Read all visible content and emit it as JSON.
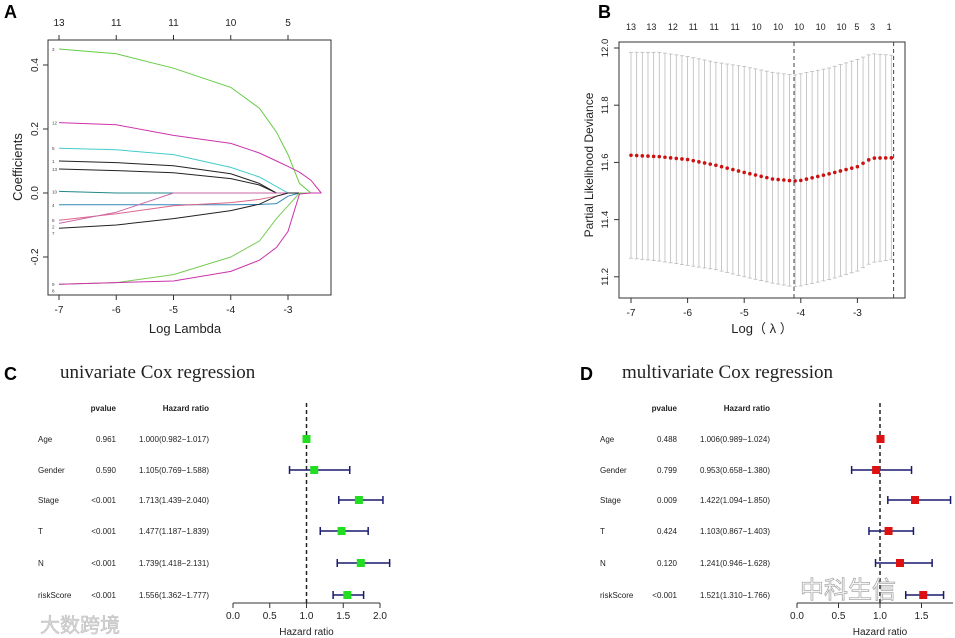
{
  "panel_labels": [
    "A",
    "B",
    "C",
    "D"
  ],
  "watermarks": [
    "大数跨境",
    "中科生信"
  ],
  "colors": {
    "green": "#22dd22",
    "red": "#dd1111",
    "navy": "#1a1a6e",
    "dev_points": "#cc1111",
    "grey": "#bbbbbb"
  },
  "chart_data": [
    {
      "type": "line",
      "id": "A",
      "xlabel": "Log Lambda",
      "ylabel": "Coefficients",
      "xlim": [
        -7.2,
        -2.35
      ],
      "ylim": [
        -0.32,
        0.478
      ],
      "xticks": [
        "-7",
        "-6",
        "-5",
        "-4",
        "-3"
      ],
      "xtick_values": [
        -7,
        -6,
        -5,
        -4,
        -3
      ],
      "yticks": [
        "-0.2",
        "0.0",
        "0.2",
        "0.4"
      ],
      "ytick_values": [
        -0.2,
        0.0,
        0.2,
        0.4
      ],
      "top_ticks": [
        "13",
        "11",
        "11",
        "10",
        "5"
      ],
      "top_tick_values": [
        -7,
        -6,
        -5,
        -4,
        -3
      ],
      "x": [
        -7,
        -6,
        -5,
        -4,
        -3.5,
        -3.2,
        -3,
        -2.8,
        -2.6,
        -2.42
      ],
      "series": [
        {
          "name": "3",
          "color": "#66cc44",
          "values": [
            0.45,
            0.435,
            0.39,
            0.33,
            0.265,
            0.19,
            0.12,
            0.03,
            0.0,
            0.0
          ]
        },
        {
          "name": "12",
          "color": "#cc33aa",
          "values": [
            0.22,
            0.213,
            0.18,
            0.155,
            0.125,
            0.1,
            0.083,
            0.065,
            0.04,
            0.0
          ]
        },
        {
          "name": "5",
          "color": "#44cccc",
          "values": [
            0.14,
            0.135,
            0.12,
            0.08,
            0.05,
            0.02,
            0.0,
            0.0,
            0.0,
            0.0
          ]
        },
        {
          "name": "1",
          "color": "#222222",
          "values": [
            0.1,
            0.095,
            0.085,
            0.06,
            0.03,
            0.0,
            0.0,
            0.0,
            0.0,
            0.0
          ]
        },
        {
          "name": "13",
          "color": "#222222",
          "values": [
            0.075,
            0.07,
            0.063,
            0.045,
            0.025,
            0.0,
            0.0,
            0.0,
            0.0,
            0.0
          ]
        },
        {
          "name": "10",
          "color": "#228888",
          "values": [
            0.005,
            0.0,
            0.0,
            0.0,
            0.0,
            0.0,
            0.0,
            0.0,
            0.0,
            0.0
          ]
        },
        {
          "name": "4",
          "color": "#3388bb",
          "values": [
            -0.037,
            -0.037,
            -0.037,
            -0.037,
            -0.036,
            -0.033,
            -0.01,
            0.0,
            0.0,
            0.0
          ]
        },
        {
          "name": "6",
          "color": "#dd6688",
          "values": [
            -0.085,
            -0.065,
            -0.04,
            -0.03,
            -0.02,
            -0.01,
            0.0,
            0.0,
            0.0,
            0.0
          ]
        },
        {
          "name": "2",
          "color": "#cc66aa",
          "values": [
            -0.095,
            -0.06,
            0.0,
            0.0,
            0.0,
            0.0,
            0.0,
            0.0,
            0.0,
            0.0
          ]
        },
        {
          "name": "7",
          "color": "#222222",
          "values": [
            -0.11,
            -0.1,
            -0.08,
            -0.055,
            -0.035,
            -0.01,
            0.0,
            0.0,
            0.0,
            0.0
          ]
        },
        {
          "name": "9",
          "color": "#77cc55",
          "values": [
            -0.285,
            -0.28,
            -0.255,
            -0.2,
            -0.15,
            -0.08,
            -0.04,
            0.0,
            0.0,
            0.0
          ]
        },
        {
          "name": "8",
          "color": "#cc33aa",
          "values": [
            -0.285,
            -0.28,
            -0.275,
            -0.245,
            -0.21,
            -0.17,
            -0.12,
            -0.003,
            0.0,
            0.0
          ]
        }
      ]
    },
    {
      "type": "scatter",
      "id": "B",
      "xlabel": "Log（ λ ）",
      "ylabel": "Partial Likelihood Deviance",
      "xlim": [
        -7.2,
        -2.2
      ],
      "ylim": [
        11.13,
        12.02
      ],
      "xticks": [
        "-7",
        "-6",
        "-5",
        "-4",
        "-3"
      ],
      "xtick_values": [
        -7,
        -6,
        -5,
        -4,
        -3
      ],
      "yticks": [
        "11.2",
        "11.4",
        "11.6",
        "11.8",
        "12.0"
      ],
      "ytick_values": [
        11.2,
        11.4,
        11.6,
        11.8,
        12.0
      ],
      "top_ticks": [
        "13",
        "13",
        "12",
        "11",
        "11",
        "11",
        "10",
        "10",
        "10",
        "10",
        "10",
        "5",
        "3",
        "1"
      ],
      "top_tick_values": [
        -7,
        -6.64,
        -6.26,
        -5.9,
        -5.53,
        -5.16,
        -4.78,
        -4.4,
        -4.03,
        -3.65,
        -3.28,
        -3.01,
        -2.73,
        -2.44
      ],
      "vlines": [
        -4.12,
        -2.36
      ],
      "lambda_range": [
        -7,
        -2.4
      ],
      "lambda_step": 0.1,
      "knots_x": [
        -7,
        -6.5,
        -6,
        -5.5,
        -5,
        -4.5,
        -4.12,
        -4,
        -3.5,
        -3,
        -2.75,
        -2.4
      ],
      "mean": [
        11.625,
        11.62,
        11.61,
        11.59,
        11.565,
        11.542,
        11.535,
        11.537,
        11.56,
        11.585,
        11.615,
        11.616
      ],
      "upper": [
        11.985,
        11.985,
        11.97,
        11.95,
        11.935,
        11.915,
        11.905,
        11.91,
        11.93,
        11.96,
        11.98,
        11.975
      ],
      "lower": [
        11.265,
        11.255,
        11.24,
        11.225,
        11.2,
        11.178,
        11.165,
        11.168,
        11.19,
        11.22,
        11.25,
        11.26
      ]
    },
    {
      "type": "forest",
      "id": "C",
      "title": "univariate Cox regression",
      "col_pvalue": "pvalue",
      "col_hr": "Hazard ratio",
      "xlabel": "Hazard ratio",
      "xticks": [
        "0.0",
        "0.5",
        "1.0",
        "1.5",
        "2.0"
      ],
      "xtick_values": [
        0,
        0.5,
        1,
        1.5,
        2
      ],
      "ref": 1,
      "marker_color": "#22dd22",
      "rows": [
        {
          "label": "Age",
          "pvalue": "0.961",
          "hr_text": "1.000(0.982−1.017)",
          "hr": 1.0,
          "lo": 0.982,
          "hi": 1.017
        },
        {
          "label": "Gender",
          "pvalue": "0.590",
          "hr_text": "1.105(0.769−1.588)",
          "hr": 1.105,
          "lo": 0.769,
          "hi": 1.588
        },
        {
          "label": "Stage",
          "pvalue": "<0.001",
          "hr_text": "1.713(1.439−2.040)",
          "hr": 1.713,
          "lo": 1.439,
          "hi": 2.04
        },
        {
          "label": "T",
          "pvalue": "<0.001",
          "hr_text": "1.477(1.187−1.839)",
          "hr": 1.477,
          "lo": 1.187,
          "hi": 1.839
        },
        {
          "label": "N",
          "pvalue": "<0.001",
          "hr_text": "1.739(1.418−2.131)",
          "hr": 1.739,
          "lo": 1.418,
          "hi": 2.131
        },
        {
          "label": "riskScore",
          "pvalue": "<0.001",
          "hr_text": "1.556(1.362−1.777)",
          "hr": 1.556,
          "lo": 1.362,
          "hi": 1.777
        }
      ]
    },
    {
      "type": "forest",
      "id": "D",
      "title": "multivariate Cox regression",
      "col_pvalue": "pvalue",
      "col_hr": "Hazard ratio",
      "xlabel": "Hazard ratio",
      "xticks": [
        "0.0",
        "0.5",
        "1.0",
        "1.5"
      ],
      "xtick_values": [
        0,
        0.5,
        1,
        1.5
      ],
      "ref": 1,
      "marker_color": "#dd1111",
      "rows": [
        {
          "label": "Age",
          "pvalue": "0.488",
          "hr_text": "1.006(0.989−1.024)",
          "hr": 1.006,
          "lo": 0.989,
          "hi": 1.024
        },
        {
          "label": "Gender",
          "pvalue": "0.799",
          "hr_text": "0.953(0.658−1.380)",
          "hr": 0.953,
          "lo": 0.658,
          "hi": 1.38
        },
        {
          "label": "Stage",
          "pvalue": "0.009",
          "hr_text": "1.422(1.094−1.850)",
          "hr": 1.422,
          "lo": 1.094,
          "hi": 1.85
        },
        {
          "label": "T",
          "pvalue": "0.424",
          "hr_text": "1.103(0.867−1.403)",
          "hr": 1.103,
          "lo": 0.867,
          "hi": 1.403
        },
        {
          "label": "N",
          "pvalue": "0.120",
          "hr_text": "1.241(0.946−1.628)",
          "hr": 1.241,
          "lo": 0.946,
          "hi": 1.628
        },
        {
          "label": "riskScore",
          "pvalue": "<0.001",
          "hr_text": "1.521(1.310−1.766)",
          "hr": 1.521,
          "lo": 1.31,
          "hi": 1.766
        }
      ]
    }
  ]
}
